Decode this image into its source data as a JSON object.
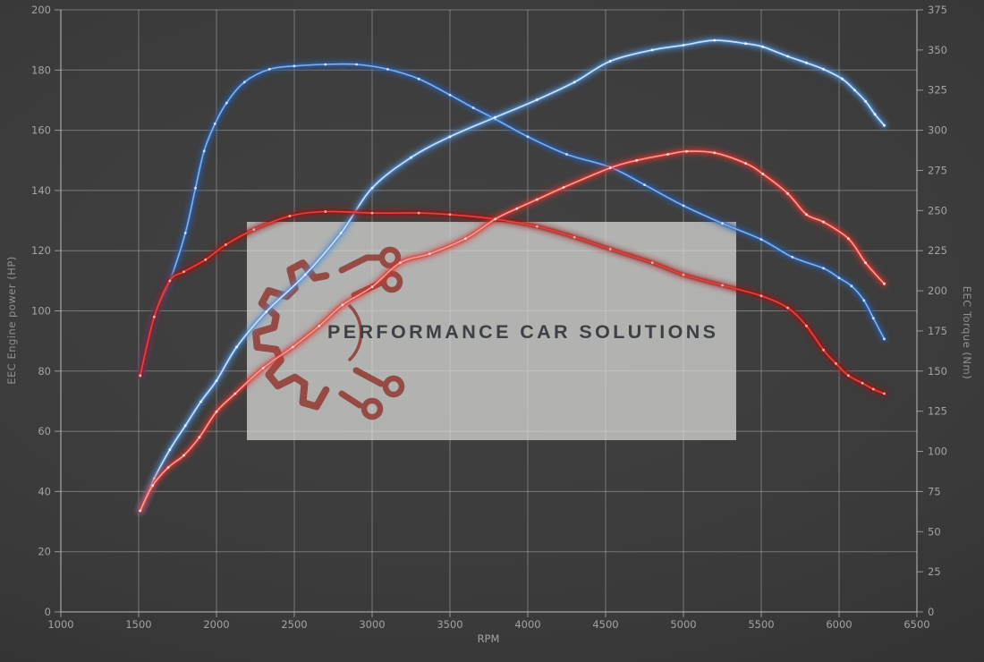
{
  "watermark": {
    "text": "PERFORMANCE CAR SOLUTIONS",
    "logo": "gear-circuit-icon",
    "box_color": "#dededc",
    "box_opacity": 0.72,
    "logo_color": "#8f352d",
    "text_color": "#3d4045"
  },
  "chart_data": {
    "type": "line",
    "title": "",
    "xlabel": "RPM",
    "x_axis": {
      "label": "RPM",
      "min": 1000,
      "max": 6500,
      "ticks": [
        1000,
        1500,
        2000,
        2500,
        3000,
        3500,
        4000,
        4500,
        5000,
        5500,
        6000,
        6500
      ]
    },
    "y_axis_left": {
      "label": "EEC Engine power (HP)",
      "min": 0,
      "max": 200,
      "ticks": [
        0,
        20,
        40,
        60,
        80,
        100,
        120,
        140,
        160,
        180,
        200
      ]
    },
    "y_axis_right": {
      "label": "EEC Torque (Nm)",
      "min": 0,
      "max": 375,
      "ticks": [
        0,
        25,
        50,
        75,
        100,
        125,
        150,
        175,
        200,
        225,
        250,
        275,
        300,
        325,
        350,
        375
      ]
    },
    "grid": "on",
    "legend": "none",
    "series": [
      {
        "id": "torque-run1",
        "axis": "right",
        "unit": "Nm",
        "color_glow": "#2a5fae",
        "color_core": "#7fb2e8",
        "color_dots": "#d6e8fc",
        "points": [
          [
            1510,
            147
          ],
          [
            1600,
            184
          ],
          [
            1700,
            206
          ],
          [
            1800,
            236
          ],
          [
            1865,
            264
          ],
          [
            1920,
            287
          ],
          [
            1990,
            304
          ],
          [
            2065,
            317
          ],
          [
            2180,
            330
          ],
          [
            2340,
            338
          ],
          [
            2500,
            340
          ],
          [
            2700,
            341
          ],
          [
            2900,
            341
          ],
          [
            3100,
            338
          ],
          [
            3300,
            332
          ],
          [
            3500,
            322
          ],
          [
            3650,
            314
          ],
          [
            3790,
            307
          ],
          [
            4000,
            296
          ],
          [
            4250,
            285
          ],
          [
            4530,
            277
          ],
          [
            4750,
            266
          ],
          [
            5000,
            253
          ],
          [
            5250,
            242
          ],
          [
            5500,
            232
          ],
          [
            5700,
            221
          ],
          [
            5900,
            214
          ],
          [
            6000,
            208
          ],
          [
            6080,
            203
          ],
          [
            6160,
            194
          ],
          [
            6220,
            183
          ],
          [
            6290,
            170
          ]
        ]
      },
      {
        "id": "torque-run2",
        "axis": "right",
        "unit": "Nm",
        "color_glow": "#4d8fd8",
        "color_core": "#cfe2f8",
        "color_dots": "#f2f8ff",
        "points": [
          [
            1510,
            63
          ],
          [
            1600,
            83
          ],
          [
            1700,
            101
          ],
          [
            1800,
            116
          ],
          [
            1900,
            131
          ],
          [
            2000,
            144
          ],
          [
            2130,
            165
          ],
          [
            2320,
            187
          ],
          [
            2570,
            210
          ],
          [
            2800,
            236
          ],
          [
            3000,
            264
          ],
          [
            3250,
            283
          ],
          [
            3500,
            296
          ],
          [
            3790,
            308
          ],
          [
            4060,
            319
          ],
          [
            4300,
            330
          ],
          [
            4530,
            343
          ],
          [
            4800,
            350
          ],
          [
            5000,
            353
          ],
          [
            5200,
            356
          ],
          [
            5400,
            354
          ],
          [
            5510,
            352
          ],
          [
            5670,
            346
          ],
          [
            5790,
            342
          ],
          [
            5900,
            338
          ],
          [
            6020,
            332
          ],
          [
            6100,
            325
          ],
          [
            6170,
            318
          ],
          [
            6230,
            310
          ],
          [
            6290,
            303
          ]
        ]
      },
      {
        "id": "power-run1",
        "axis": "left",
        "unit": "HP",
        "color_glow": "#9c1713",
        "color_core": "#e8443c",
        "color_dots": "#ffb3a6",
        "points": [
          [
            1510,
            78.5
          ],
          [
            1600,
            98
          ],
          [
            1700,
            110
          ],
          [
            1790,
            113
          ],
          [
            1930,
            117
          ],
          [
            2060,
            122
          ],
          [
            2240,
            127
          ],
          [
            2470,
            131.5
          ],
          [
            2700,
            133
          ],
          [
            3000,
            132.5
          ],
          [
            3300,
            132.5
          ],
          [
            3500,
            132
          ],
          [
            3790,
            130.5
          ],
          [
            4060,
            128
          ],
          [
            4300,
            124.5
          ],
          [
            4530,
            120.5
          ],
          [
            4800,
            116
          ],
          [
            5000,
            112
          ],
          [
            5250,
            108.5
          ],
          [
            5500,
            105
          ],
          [
            5670,
            101
          ],
          [
            5790,
            95
          ],
          [
            5900,
            87
          ],
          [
            5980,
            82.5
          ],
          [
            6060,
            78.5
          ],
          [
            6150,
            76
          ],
          [
            6220,
            74
          ],
          [
            6290,
            72.5
          ]
        ]
      },
      {
        "id": "power-run2",
        "axis": "left",
        "unit": "HP",
        "color_glow": "#d8352f",
        "color_core": "#ff9d94",
        "color_dots": "#ffe0db",
        "points": [
          [
            1510,
            33.6
          ],
          [
            1590,
            42
          ],
          [
            1690,
            48
          ],
          [
            1790,
            52
          ],
          [
            1890,
            58
          ],
          [
            2000,
            66.5
          ],
          [
            2120,
            72.5
          ],
          [
            2300,
            81
          ],
          [
            2490,
            88
          ],
          [
            2660,
            95
          ],
          [
            2810,
            102
          ],
          [
            3000,
            108
          ],
          [
            3180,
            116
          ],
          [
            3370,
            119
          ],
          [
            3600,
            124
          ],
          [
            3790,
            130.5
          ],
          [
            3930,
            134
          ],
          [
            4060,
            137
          ],
          [
            4230,
            141
          ],
          [
            4530,
            147.5
          ],
          [
            4700,
            150
          ],
          [
            4900,
            152
          ],
          [
            5020,
            153
          ],
          [
            5200,
            152.5
          ],
          [
            5400,
            149
          ],
          [
            5510,
            145.5
          ],
          [
            5670,
            139
          ],
          [
            5790,
            132
          ],
          [
            5900,
            129.5
          ],
          [
            6060,
            124
          ],
          [
            6170,
            116
          ],
          [
            6290,
            109
          ]
        ]
      }
    ]
  }
}
